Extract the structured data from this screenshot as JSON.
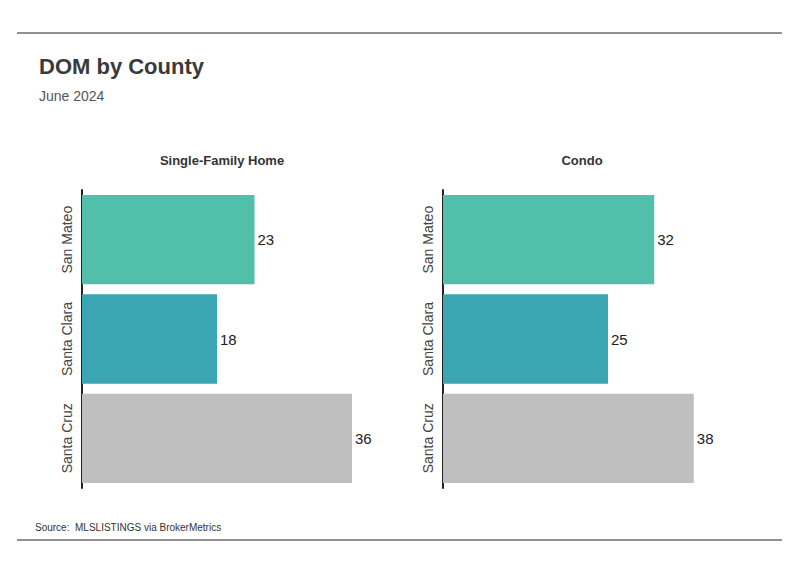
{
  "title": "DOM by County",
  "subtitle": "June 2024",
  "source": "Source:  MLSLISTINGS via BrokerMetrics",
  "chart_data": [
    {
      "type": "bar",
      "title": "Single-Family Home",
      "orientation": "horizontal",
      "categories": [
        "San Mateo",
        "Santa Clara",
        "Santa Cruz"
      ],
      "values": [
        23,
        18,
        36
      ],
      "colors": [
        "#52bfaa",
        "#3aa6b3",
        "#bfbfbf"
      ],
      "xlim": [
        0,
        40
      ],
      "xticks": [
        0,
        40
      ],
      "grid": false,
      "data_labels": true,
      "tick_labels": "y"
    },
    {
      "type": "bar",
      "title": "Condo",
      "orientation": "horizontal",
      "categories": [
        "San Mateo",
        "Santa Clara",
        "Santa Cruz"
      ],
      "values": [
        32,
        25,
        38
      ],
      "colors": [
        "#52bfaa",
        "#3aa6b3",
        "#bfbfbf"
      ],
      "xlim": [
        0,
        40
      ],
      "xticks": [
        0,
        40
      ],
      "grid": false,
      "data_labels": true,
      "tick_labels": "y"
    }
  ]
}
